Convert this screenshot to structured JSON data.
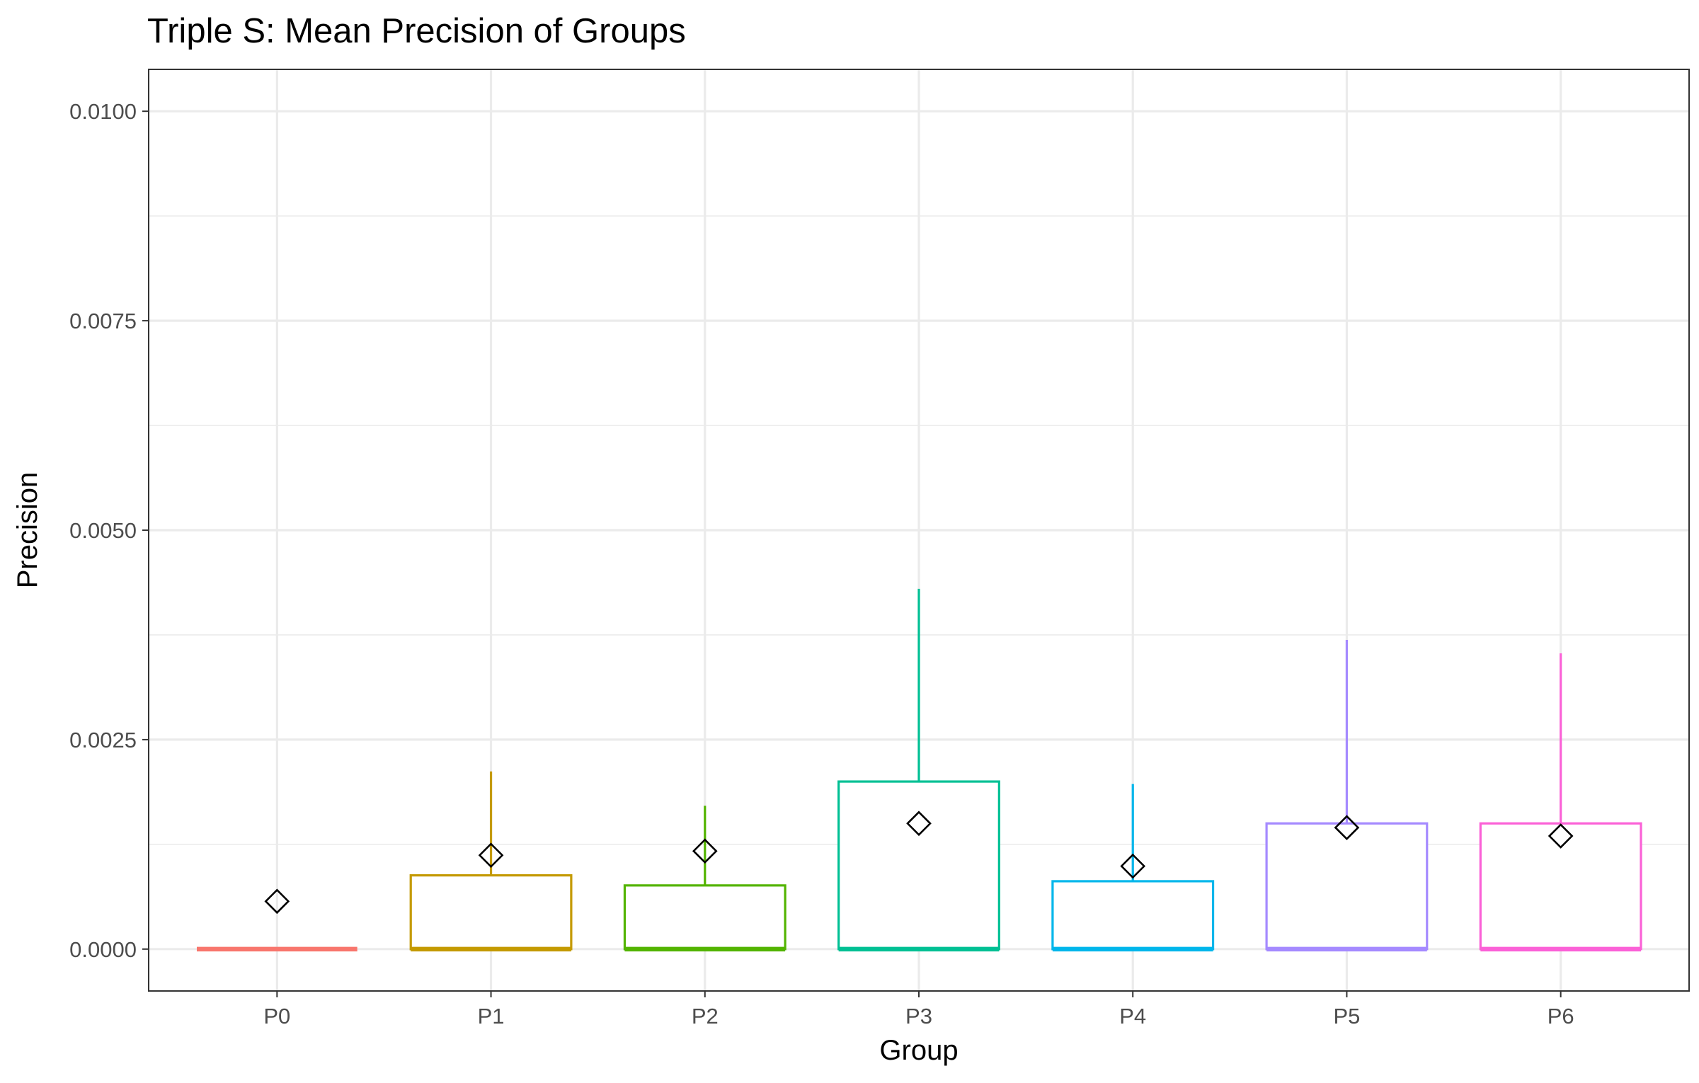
{
  "chart_data": {
    "type": "box",
    "title": "Triple S: Mean Precision of Groups",
    "xlabel": "Group",
    "ylabel": "Precision",
    "ylim": [
      -0.0005,
      0.0105
    ],
    "yticks": [
      0.0,
      0.0025,
      0.005,
      0.0075,
      0.01
    ],
    "ytick_labels": [
      "0.0000",
      "0.0025",
      "0.0050",
      "0.0075",
      "0.0100"
    ],
    "categories": [
      "P0",
      "P1",
      "P2",
      "P3",
      "P4",
      "P5",
      "P6"
    ],
    "grid": true,
    "legend": "none",
    "boxes": [
      {
        "group": "P0",
        "q1": 0.0,
        "median": 0.0,
        "q3": 0.0,
        "whisker_low": 0.0,
        "whisker_high": 0.0,
        "mean": 0.00057,
        "color": "#F8766D"
      },
      {
        "group": "P1",
        "q1": 0.0,
        "median": 0.0,
        "q3": 0.00088,
        "whisker_low": 0.0,
        "whisker_high": 0.00212,
        "mean": 0.00112,
        "color": "#C49A00"
      },
      {
        "group": "P2",
        "q1": 0.0,
        "median": 0.0,
        "q3": 0.00076,
        "whisker_low": 0.0,
        "whisker_high": 0.00171,
        "mean": 0.00117,
        "color": "#53B400"
      },
      {
        "group": "P3",
        "q1": 0.0,
        "median": 0.0,
        "q3": 0.002,
        "whisker_low": 0.0,
        "whisker_high": 0.0043,
        "mean": 0.0015,
        "color": "#00C094"
      },
      {
        "group": "P4",
        "q1": 0.0,
        "median": 0.0,
        "q3": 0.00081,
        "whisker_low": 0.0,
        "whisker_high": 0.00197,
        "mean": 0.00099,
        "color": "#00B6EB"
      },
      {
        "group": "P5",
        "q1": 0.0,
        "median": 0.0,
        "q3": 0.0015,
        "whisker_low": 0.0,
        "whisker_high": 0.00369,
        "mean": 0.00145,
        "color": "#A58AFF"
      },
      {
        "group": "P6",
        "q1": 0.0,
        "median": 0.0,
        "q3": 0.0015,
        "whisker_low": 0.0,
        "whisker_high": 0.00353,
        "mean": 0.00135,
        "color": "#FB61D7"
      }
    ]
  }
}
